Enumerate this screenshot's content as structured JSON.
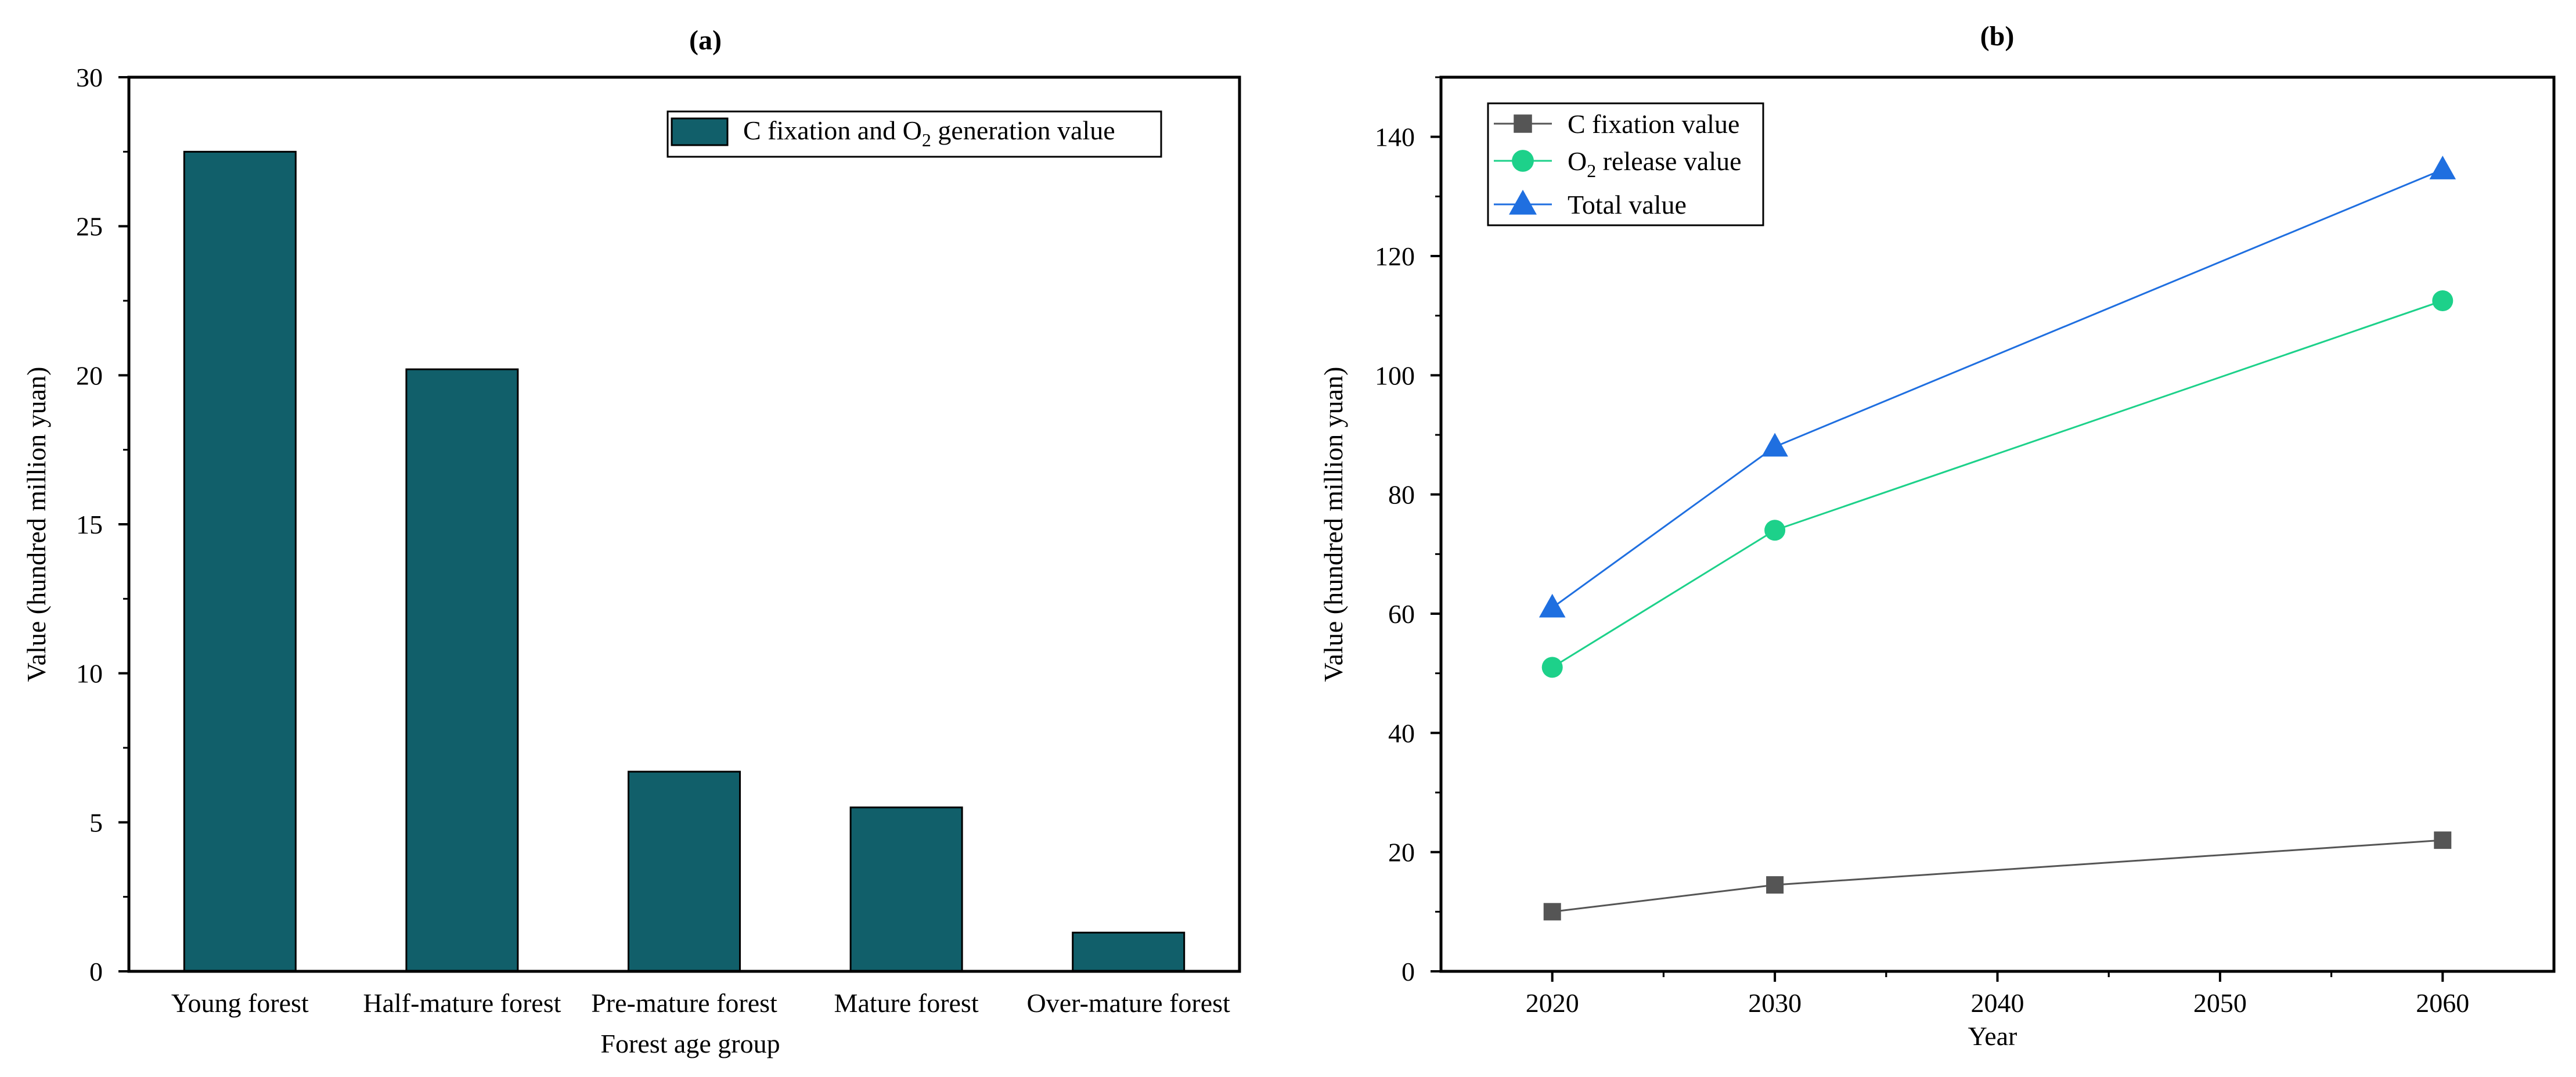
{
  "chart_data": [
    {
      "type": "bar",
      "panel_label": "(a)",
      "title": "",
      "categories": [
        "Young forest",
        "Half-mature forest",
        "Pre-mature forest",
        "Mature forest",
        "Over-mature forest"
      ],
      "series": [
        {
          "name": "C fixation and O2 generation value",
          "legend_parts": [
            "C fixation and O",
            "2",
            " generation value"
          ],
          "values": [
            27.5,
            20.2,
            6.7,
            5.5,
            1.3
          ],
          "color": "#115f6a"
        }
      ],
      "xlabel": "Forest age group",
      "ylabel": "Value (hundred million yuan)",
      "ylim": [
        0,
        30
      ],
      "yticks": [
        0,
        5,
        10,
        15,
        20,
        25,
        30
      ],
      "ytick_labels": [
        "0",
        "5",
        "10",
        "15",
        "20",
        "25",
        "30"
      ],
      "grid": false,
      "legend_position": "top-right"
    },
    {
      "type": "line",
      "panel_label": "(b)",
      "title": "",
      "x": [
        2020,
        2030,
        2060
      ],
      "series": [
        {
          "name": "C fixation value",
          "legend_parts": [
            "C fixation value"
          ],
          "values": [
            10,
            14.5,
            22
          ],
          "color": "#555555",
          "marker": "square"
        },
        {
          "name": "O2 release value",
          "legend_parts": [
            "O",
            "2",
            " release value"
          ],
          "values": [
            51,
            74,
            112.5
          ],
          "color": "#1dd18a",
          "marker": "circle"
        },
        {
          "name": "Total value",
          "legend_parts": [
            "Total value"
          ],
          "values": [
            61,
            88,
            134.5
          ],
          "color": "#1f6fe0",
          "marker": "triangle"
        }
      ],
      "xlabel": "Year",
      "ylabel": "Value (hundred million yuan)",
      "xlim": [
        2015,
        2065
      ],
      "xticks": [
        2020,
        2030,
        2040,
        2050,
        2060
      ],
      "xtick_labels": [
        "2020",
        "2030",
        "2040",
        "2050",
        "2060"
      ],
      "ylim": [
        0,
        150
      ],
      "yticks": [
        0,
        20,
        40,
        60,
        80,
        100,
        120,
        140
      ],
      "ytick_labels": [
        "0",
        "20",
        "40",
        "60",
        "80",
        "100",
        "120",
        "140"
      ],
      "grid": false,
      "legend_position": "top-left"
    }
  ]
}
